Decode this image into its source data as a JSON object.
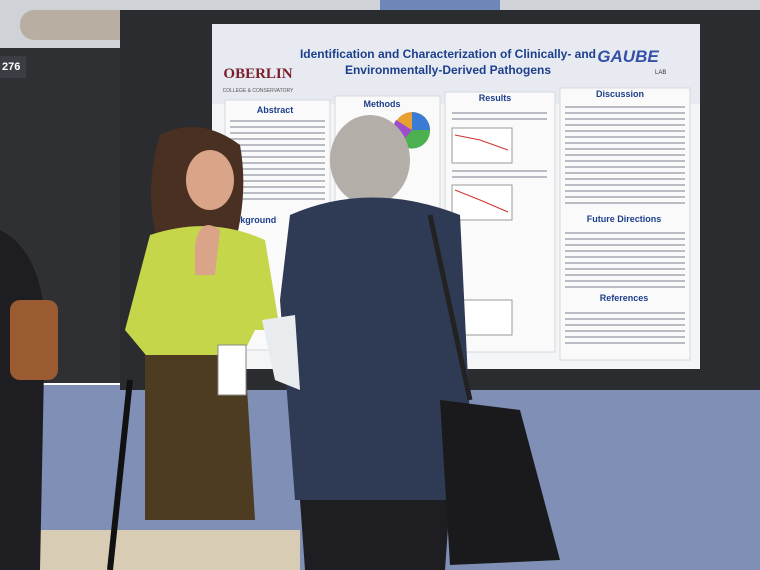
{
  "booth_number": "276",
  "poster": {
    "title_lines": [
      "Identification and Characterization of Clinically- and",
      "Environmentally-Derived Pathogens"
    ],
    "logo": "OBERLIN",
    "logo_sub": "COLLEGE & CONSERVATORY",
    "lab_logo": "GAUBE",
    "lab_logo_sub": "LAB",
    "sections": {
      "abstract": "Abstract",
      "methods": "Methods",
      "results": "Results",
      "discussion": "Discussion",
      "background": "Background",
      "future": "Future Directions",
      "references": "References"
    }
  }
}
